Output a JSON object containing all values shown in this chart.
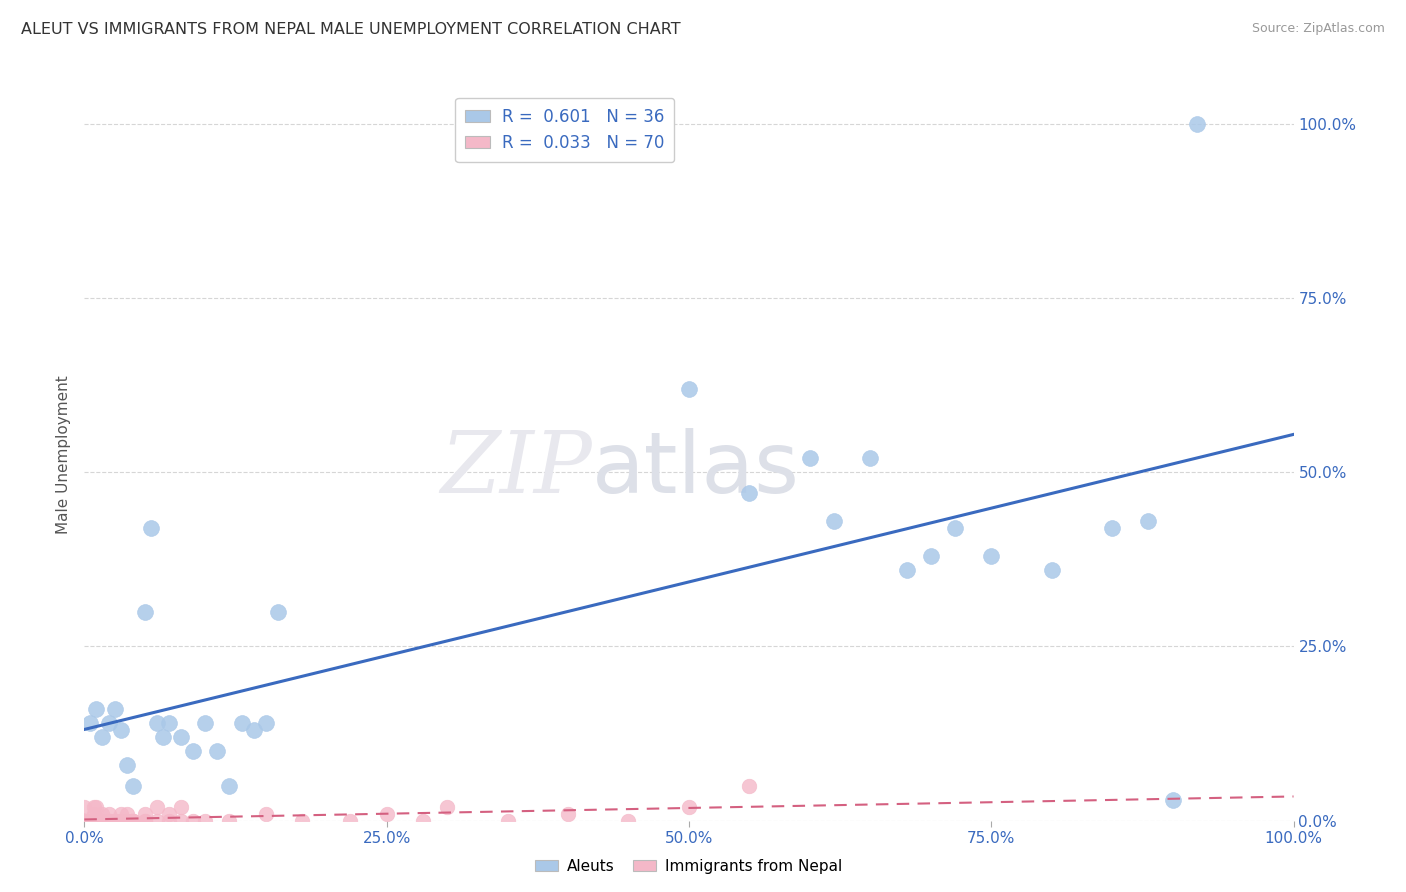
{
  "title": "ALEUT VS IMMIGRANTS FROM NEPAL MALE UNEMPLOYMENT CORRELATION CHART",
  "source": "Source: ZipAtlas.com",
  "ylabel": "Male Unemployment",
  "x_ticks": [
    0.0,
    0.25,
    0.5,
    0.75,
    1.0
  ],
  "x_tick_labels": [
    "0.0%",
    "25.0%",
    "50.0%",
    "75.0%",
    "100.0%"
  ],
  "y_ticks": [
    0.0,
    0.25,
    0.5,
    0.75,
    1.0
  ],
  "y_tick_labels": [
    "0.0%",
    "25.0%",
    "50.0%",
    "75.0%",
    "100.0%"
  ],
  "aleuts_R": "0.601",
  "aleuts_N": "36",
  "nepal_R": "0.033",
  "nepal_N": "70",
  "aleuts_color": "#aac8e8",
  "aleuts_line_color": "#3a6abf",
  "nepal_color": "#f4b8c8",
  "nepal_line_color": "#d46080",
  "aleuts_x": [
    0.005,
    0.01,
    0.015,
    0.02,
    0.025,
    0.03,
    0.035,
    0.04,
    0.05,
    0.055,
    0.06,
    0.065,
    0.07,
    0.08,
    0.09,
    0.1,
    0.11,
    0.12,
    0.13,
    0.14,
    0.15,
    0.16,
    0.5,
    0.55,
    0.6,
    0.62,
    0.65,
    0.68,
    0.7,
    0.72,
    0.75,
    0.8,
    0.85,
    0.88,
    0.9,
    0.92
  ],
  "aleuts_y": [
    0.14,
    0.16,
    0.12,
    0.14,
    0.16,
    0.13,
    0.08,
    0.05,
    0.3,
    0.42,
    0.14,
    0.12,
    0.14,
    0.12,
    0.1,
    0.14,
    0.1,
    0.05,
    0.14,
    0.13,
    0.14,
    0.3,
    0.62,
    0.47,
    0.52,
    0.43,
    0.52,
    0.36,
    0.38,
    0.42,
    0.38,
    0.36,
    0.42,
    0.43,
    0.03,
    1.0
  ],
  "nepal_x": [
    0.0,
    0.0,
    0.0,
    0.0,
    0.0,
    0.0,
    0.0,
    0.0,
    0.0,
    0.0,
    0.005,
    0.005,
    0.005,
    0.005,
    0.005,
    0.005,
    0.008,
    0.008,
    0.008,
    0.008,
    0.008,
    0.01,
    0.01,
    0.01,
    0.01,
    0.01,
    0.015,
    0.015,
    0.015,
    0.015,
    0.02,
    0.02,
    0.02,
    0.02,
    0.02,
    0.025,
    0.025,
    0.025,
    0.03,
    0.03,
    0.03,
    0.035,
    0.035,
    0.035,
    0.04,
    0.04,
    0.04,
    0.05,
    0.05,
    0.05,
    0.06,
    0.06,
    0.07,
    0.07,
    0.08,
    0.08,
    0.09,
    0.1,
    0.12,
    0.15,
    0.18,
    0.22,
    0.25,
    0.28,
    0.3,
    0.35,
    0.4,
    0.45,
    0.5,
    0.55
  ],
  "nepal_y": [
    0.0,
    0.0,
    0.0,
    0.0,
    0.0,
    0.0,
    0.0,
    0.0,
    0.0,
    0.02,
    0.0,
    0.0,
    0.0,
    0.0,
    0.0,
    0.0,
    0.0,
    0.0,
    0.0,
    0.01,
    0.02,
    0.0,
    0.0,
    0.0,
    0.0,
    0.02,
    0.0,
    0.0,
    0.0,
    0.01,
    0.0,
    0.0,
    0.0,
    0.0,
    0.01,
    0.0,
    0.0,
    0.0,
    0.0,
    0.0,
    0.01,
    0.0,
    0.0,
    0.01,
    0.0,
    0.0,
    0.0,
    0.0,
    0.0,
    0.01,
    0.0,
    0.02,
    0.0,
    0.01,
    0.0,
    0.02,
    0.0,
    0.0,
    0.0,
    0.01,
    0.0,
    0.0,
    0.01,
    0.0,
    0.02,
    0.0,
    0.01,
    0.0,
    0.02,
    0.05
  ],
  "background_color": "#ffffff",
  "grid_color": "#cccccc"
}
